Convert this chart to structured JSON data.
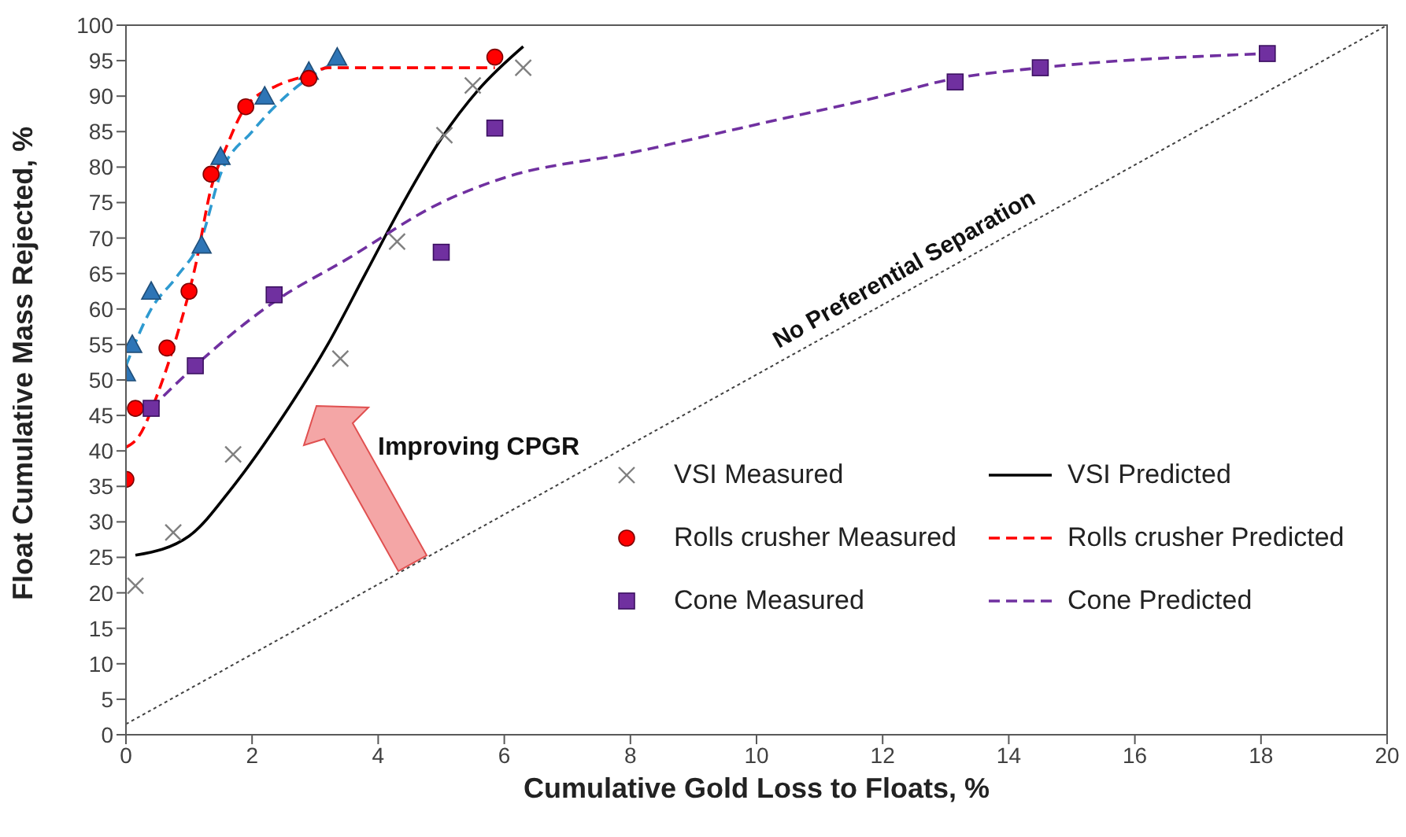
{
  "chart_data": {
    "type": "scatter",
    "xlabel": "Cumulative Gold Loss to Floats, %",
    "ylabel": "Float Cumulative Mass Rejected, %",
    "xlim": [
      0,
      20
    ],
    "xticks": [
      0,
      2,
      4,
      6,
      8,
      10,
      12,
      14,
      16,
      18,
      20
    ],
    "ylim": [
      0,
      100
    ],
    "yticks": [
      0,
      5,
      10,
      15,
      20,
      25,
      30,
      35,
      40,
      45,
      50,
      55,
      60,
      65,
      70,
      75,
      80,
      85,
      90,
      95,
      100
    ],
    "grid": false,
    "legend": "bottom right",
    "annotations": [
      "No Preferential Separation",
      "Improving CPGR"
    ],
    "series": [
      {
        "name": "VSI Measured",
        "marker": "cross",
        "color": "#7f7f7f",
        "x": [
          0.15,
          0.75,
          1.7,
          3.4,
          4.3,
          5.05,
          5.5,
          6.3
        ],
        "values": [
          21,
          28.5,
          39.5,
          53,
          69.5,
          84.5,
          91.5,
          94
        ]
      },
      {
        "name": "VSI Predicted",
        "type": "line",
        "line_style": "solid",
        "color": "#000000",
        "x": [
          0.15,
          1,
          1.7,
          2.5,
          3.2,
          3.8,
          4.4,
          5,
          5.6,
          6.3
        ],
        "values": [
          25.3,
          28,
          35,
          45,
          55,
          65,
          75,
          84,
          91,
          97
        ]
      },
      {
        "marker": "triangle",
        "color": "#2e75b6",
        "x": [
          0,
          0.1,
          0.4,
          1.2,
          1.5,
          2.2,
          2.9,
          3.35
        ],
        "values": [
          51,
          55,
          62.5,
          69,
          81.5,
          90,
          93.5,
          95.5
        ]
      },
      {
        "type": "line",
        "line_style": "dashed",
        "color": "#2e9ad0",
        "x": [
          0,
          0.4,
          0.8,
          1.2,
          1.5,
          2,
          2.6,
          3.35
        ],
        "values": [
          52,
          60,
          64.5,
          70,
          79,
          85,
          90.5,
          95
        ]
      },
      {
        "name": "Rolls crusher Measured",
        "marker": "circle",
        "color": "#ff0000",
        "x": [
          0,
          0.15,
          0.65,
          1,
          1.35,
          1.9,
          2.9,
          5.85
        ],
        "values": [
          36,
          46,
          54.5,
          62.5,
          79,
          88.5,
          92.5,
          95.5
        ]
      },
      {
        "name": "Rolls crusher Predicted",
        "type": "line",
        "line_style": "dashed",
        "color": "#ff0000",
        "x": [
          0,
          0.2,
          0.5,
          0.8,
          1.1,
          1.35,
          1.6,
          1.9,
          2.4,
          2.9,
          3.2,
          5.85
        ],
        "values": [
          40.5,
          42,
          48,
          56,
          66,
          77,
          83,
          88.5,
          91.5,
          93,
          94,
          94
        ]
      },
      {
        "name": "Cone Measured",
        "marker": "square",
        "color": "#7030a0",
        "x": [
          0.4,
          1.1,
          2.35,
          5,
          5.85,
          13.15,
          14.5,
          18.1
        ],
        "values": [
          46,
          52,
          62,
          68,
          85.5,
          92,
          94,
          96
        ]
      },
      {
        "name": "Cone Predicted",
        "type": "line",
        "line_style": "dashed",
        "color": "#7030a0",
        "x": [
          0.4,
          1.1,
          2.35,
          3.5,
          5,
          6,
          8,
          10,
          12,
          13.15,
          14.5,
          18.1
        ],
        "values": [
          46,
          52,
          61,
          67,
          75,
          78.5,
          82,
          86,
          90,
          92.5,
          94,
          96
        ]
      },
      {
        "type": "line",
        "line_style": "dotted",
        "color": "#404040",
        "x": [
          0,
          20
        ],
        "values": [
          1.5,
          100
        ]
      }
    ]
  }
}
